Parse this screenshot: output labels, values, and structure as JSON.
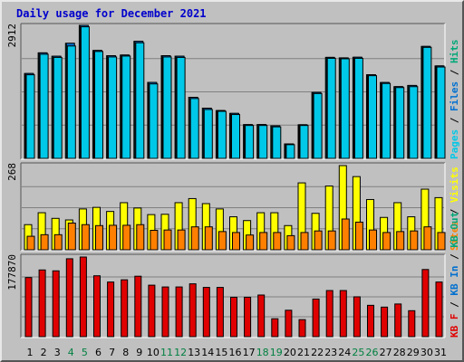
{
  "chart_data": {
    "type": "bar",
    "title": "Daily usage for December 2021",
    "categories": [
      "1",
      "2",
      "3",
      "4",
      "5",
      "6",
      "7",
      "8",
      "9",
      "10",
      "11",
      "12",
      "13",
      "14",
      "15",
      "16",
      "17",
      "18",
      "19",
      "20",
      "21",
      "22",
      "23",
      "24",
      "25",
      "26",
      "27",
      "28",
      "29",
      "30",
      "31"
    ],
    "weekend_days": [
      "4",
      "5",
      "11",
      "12",
      "18",
      "19",
      "25",
      "26"
    ],
    "colors": {
      "pages": "#00c8e8",
      "files": "#0070d0",
      "hits": "#00a878",
      "sites": "#ff8000",
      "visits": "#ffff00",
      "kb": "#e00000",
      "weekday_label": "#000000",
      "weekend_label": "#008040",
      "title": "#0000cc"
    },
    "panels": [
      {
        "name": "hits-files-pages",
        "ymax_label": "2912",
        "ymax": 2912,
        "legend": [
          {
            "text": "Pages",
            "color": "#00c8e8"
          },
          {
            "text": " / ",
            "color": "#000000"
          },
          {
            "text": "Files",
            "color": "#0070d0"
          },
          {
            "text": " / ",
            "color": "#000000"
          },
          {
            "text": "Hits",
            "color": "#00a878"
          }
        ],
        "series": [
          {
            "name": "Hits",
            "color": "#00a878",
            "values": [
              1858,
              2310,
              2236,
              2519,
              2912,
              2362,
              2247,
              2262,
              2563,
              1663,
              2248,
              2237,
              1337,
              1099,
              1047,
              985,
              739,
              740,
              713,
              317,
              736,
              1443,
              2211,
              2200,
              2214,
              1831,
              1661,
              1570,
              1596,
              2451,
              2024
            ]
          },
          {
            "name": "Files",
            "color": "#0070d0",
            "values": [
              1858,
              2310,
              2236,
              2519,
              2912,
              2362,
              2247,
              2262,
              2563,
              1663,
              2248,
              2237,
              1337,
              1099,
              1047,
              985,
              739,
              740,
              713,
              317,
              736,
              1443,
              2211,
              2200,
              2214,
              1831,
              1661,
              1570,
              1596,
              2451,
              2024
            ]
          },
          {
            "name": "Pages",
            "color": "#00c8e8",
            "values": [
              1830,
              2280,
              2210,
              2460,
              2880,
              2340,
              2220,
              2240,
              2530,
              1630,
              2220,
              2210,
              1310,
              1070,
              1030,
              960,
              720,
              720,
              690,
              300,
              720,
              1420,
              2190,
              2180,
              2190,
              1810,
              1640,
              1550,
              1570,
              2430,
              2000
            ]
          }
        ]
      },
      {
        "name": "visits-sites",
        "ymax_label": "268",
        "ymax": 268,
        "legend": [
          {
            "text": "Sites",
            "color": "#ff8000"
          },
          {
            "text": " / ",
            "color": "#000000"
          },
          {
            "text": "Visits",
            "color": "#ffff00"
          }
        ],
        "series": [
          {
            "name": "Visits",
            "color": "#ffff00",
            "values": [
              80,
              118,
              100,
              95,
              130,
              135,
              122,
              150,
              133,
              112,
              113,
              150,
              163,
              147,
              130,
              105,
              93,
              118,
              118,
              77,
              213,
              116,
              203,
              268,
              233,
              160,
              103,
              150,
              105,
              193,
              166
            ]
          },
          {
            "name": "Sites",
            "color": "#ff8000",
            "values": [
              43,
              48,
              48,
              85,
              80,
              77,
              78,
              78,
              80,
              62,
              63,
              63,
              73,
              73,
              58,
              55,
              47,
              55,
              55,
              45,
              55,
              60,
              60,
              98,
              88,
              63,
              55,
              58,
              60,
              73,
              55
            ]
          }
        ]
      },
      {
        "name": "kbytes",
        "ymax_label": "177870",
        "ymax": 177870,
        "legend": [
          {
            "text": "KB F",
            "color": "#e00000"
          },
          {
            "text": " / ",
            "color": "#000000"
          },
          {
            "text": "KB In",
            "color": "#0070d0"
          },
          {
            "text": " / ",
            "color": "#000000"
          },
          {
            "text": "KB Out",
            "color": "#00a878"
          }
        ],
        "series": [
          {
            "name": "KB F",
            "color": "#e00000",
            "values": [
              132000,
              149000,
              147000,
              174000,
              177870,
              136000,
              122000,
              127000,
              135000,
              115000,
              111000,
              111000,
              118000,
              110000,
              110000,
              88000,
              88000,
              93000,
              40000,
              59000,
              38000,
              84000,
              103000,
              103000,
              89000,
              70000,
              66000,
              73000,
              58000,
              150000,
              122000
            ]
          }
        ]
      }
    ]
  }
}
